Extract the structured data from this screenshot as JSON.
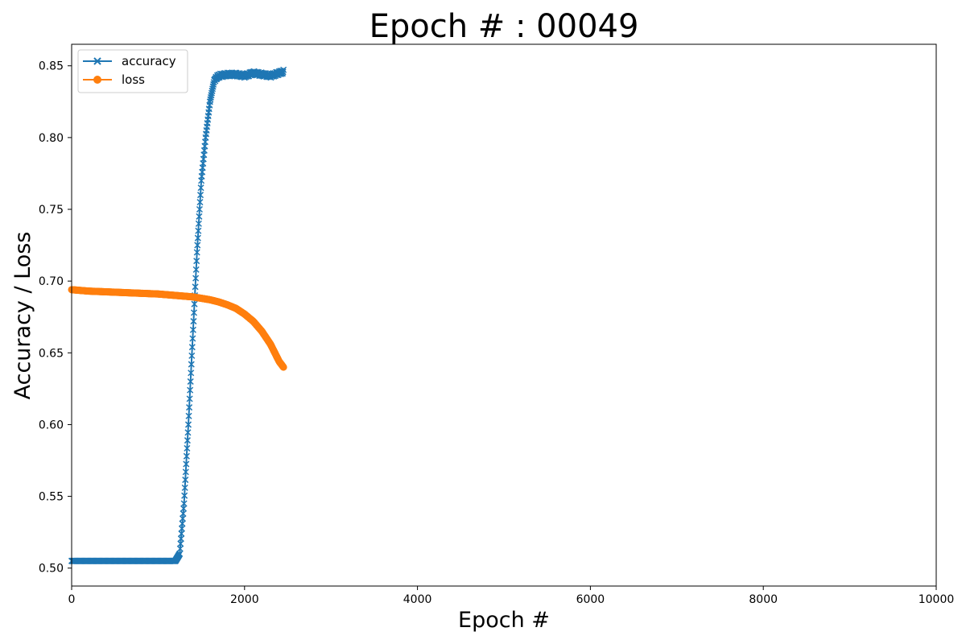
{
  "chart_data": {
    "type": "line",
    "title": "Epoch # : 00049",
    "xlabel": "Epoch #",
    "ylabel": "Accuracy / Loss",
    "xlim": [
      0,
      10000
    ],
    "ylim": [
      0.4875,
      0.865
    ],
    "x_ticks": [
      0,
      2000,
      4000,
      6000,
      8000,
      10000
    ],
    "x_tick_labels": [
      "0",
      "2000",
      "4000",
      "6000",
      "8000",
      "10000"
    ],
    "y_ticks": [
      0.5,
      0.55,
      0.6,
      0.65,
      0.7,
      0.75,
      0.8,
      0.85
    ],
    "y_tick_labels": [
      "0.50",
      "0.55",
      "0.60",
      "0.65",
      "0.70",
      "0.75",
      "0.80",
      "0.85"
    ],
    "grid": false,
    "legend_position": "top-left",
    "series": [
      {
        "name": "accuracy",
        "color": "#1f77b4",
        "marker": "x",
        "x": [
          0,
          200,
          400,
          600,
          800,
          1000,
          1200,
          1250,
          1300,
          1350,
          1400,
          1450,
          1500,
          1550,
          1600,
          1650,
          1700,
          1800,
          1900,
          2000,
          2100,
          2200,
          2300,
          2400,
          2450
        ],
        "y": [
          0.505,
          0.505,
          0.505,
          0.505,
          0.505,
          0.505,
          0.505,
          0.51,
          0.545,
          0.6,
          0.66,
          0.72,
          0.77,
          0.8,
          0.825,
          0.84,
          0.843,
          0.844,
          0.844,
          0.843,
          0.845,
          0.844,
          0.843,
          0.845,
          0.846
        ]
      },
      {
        "name": "loss",
        "color": "#ff7f0e",
        "marker": "o",
        "x": [
          0,
          200,
          400,
          600,
          800,
          1000,
          1200,
          1400,
          1600,
          1700,
          1800,
          1900,
          2000,
          2100,
          2200,
          2300,
          2350,
          2400,
          2450
        ],
        "y": [
          0.694,
          0.693,
          0.6925,
          0.692,
          0.6915,
          0.691,
          0.69,
          0.689,
          0.687,
          0.6855,
          0.6835,
          0.681,
          0.677,
          0.672,
          0.665,
          0.656,
          0.65,
          0.644,
          0.64
        ]
      }
    ]
  }
}
